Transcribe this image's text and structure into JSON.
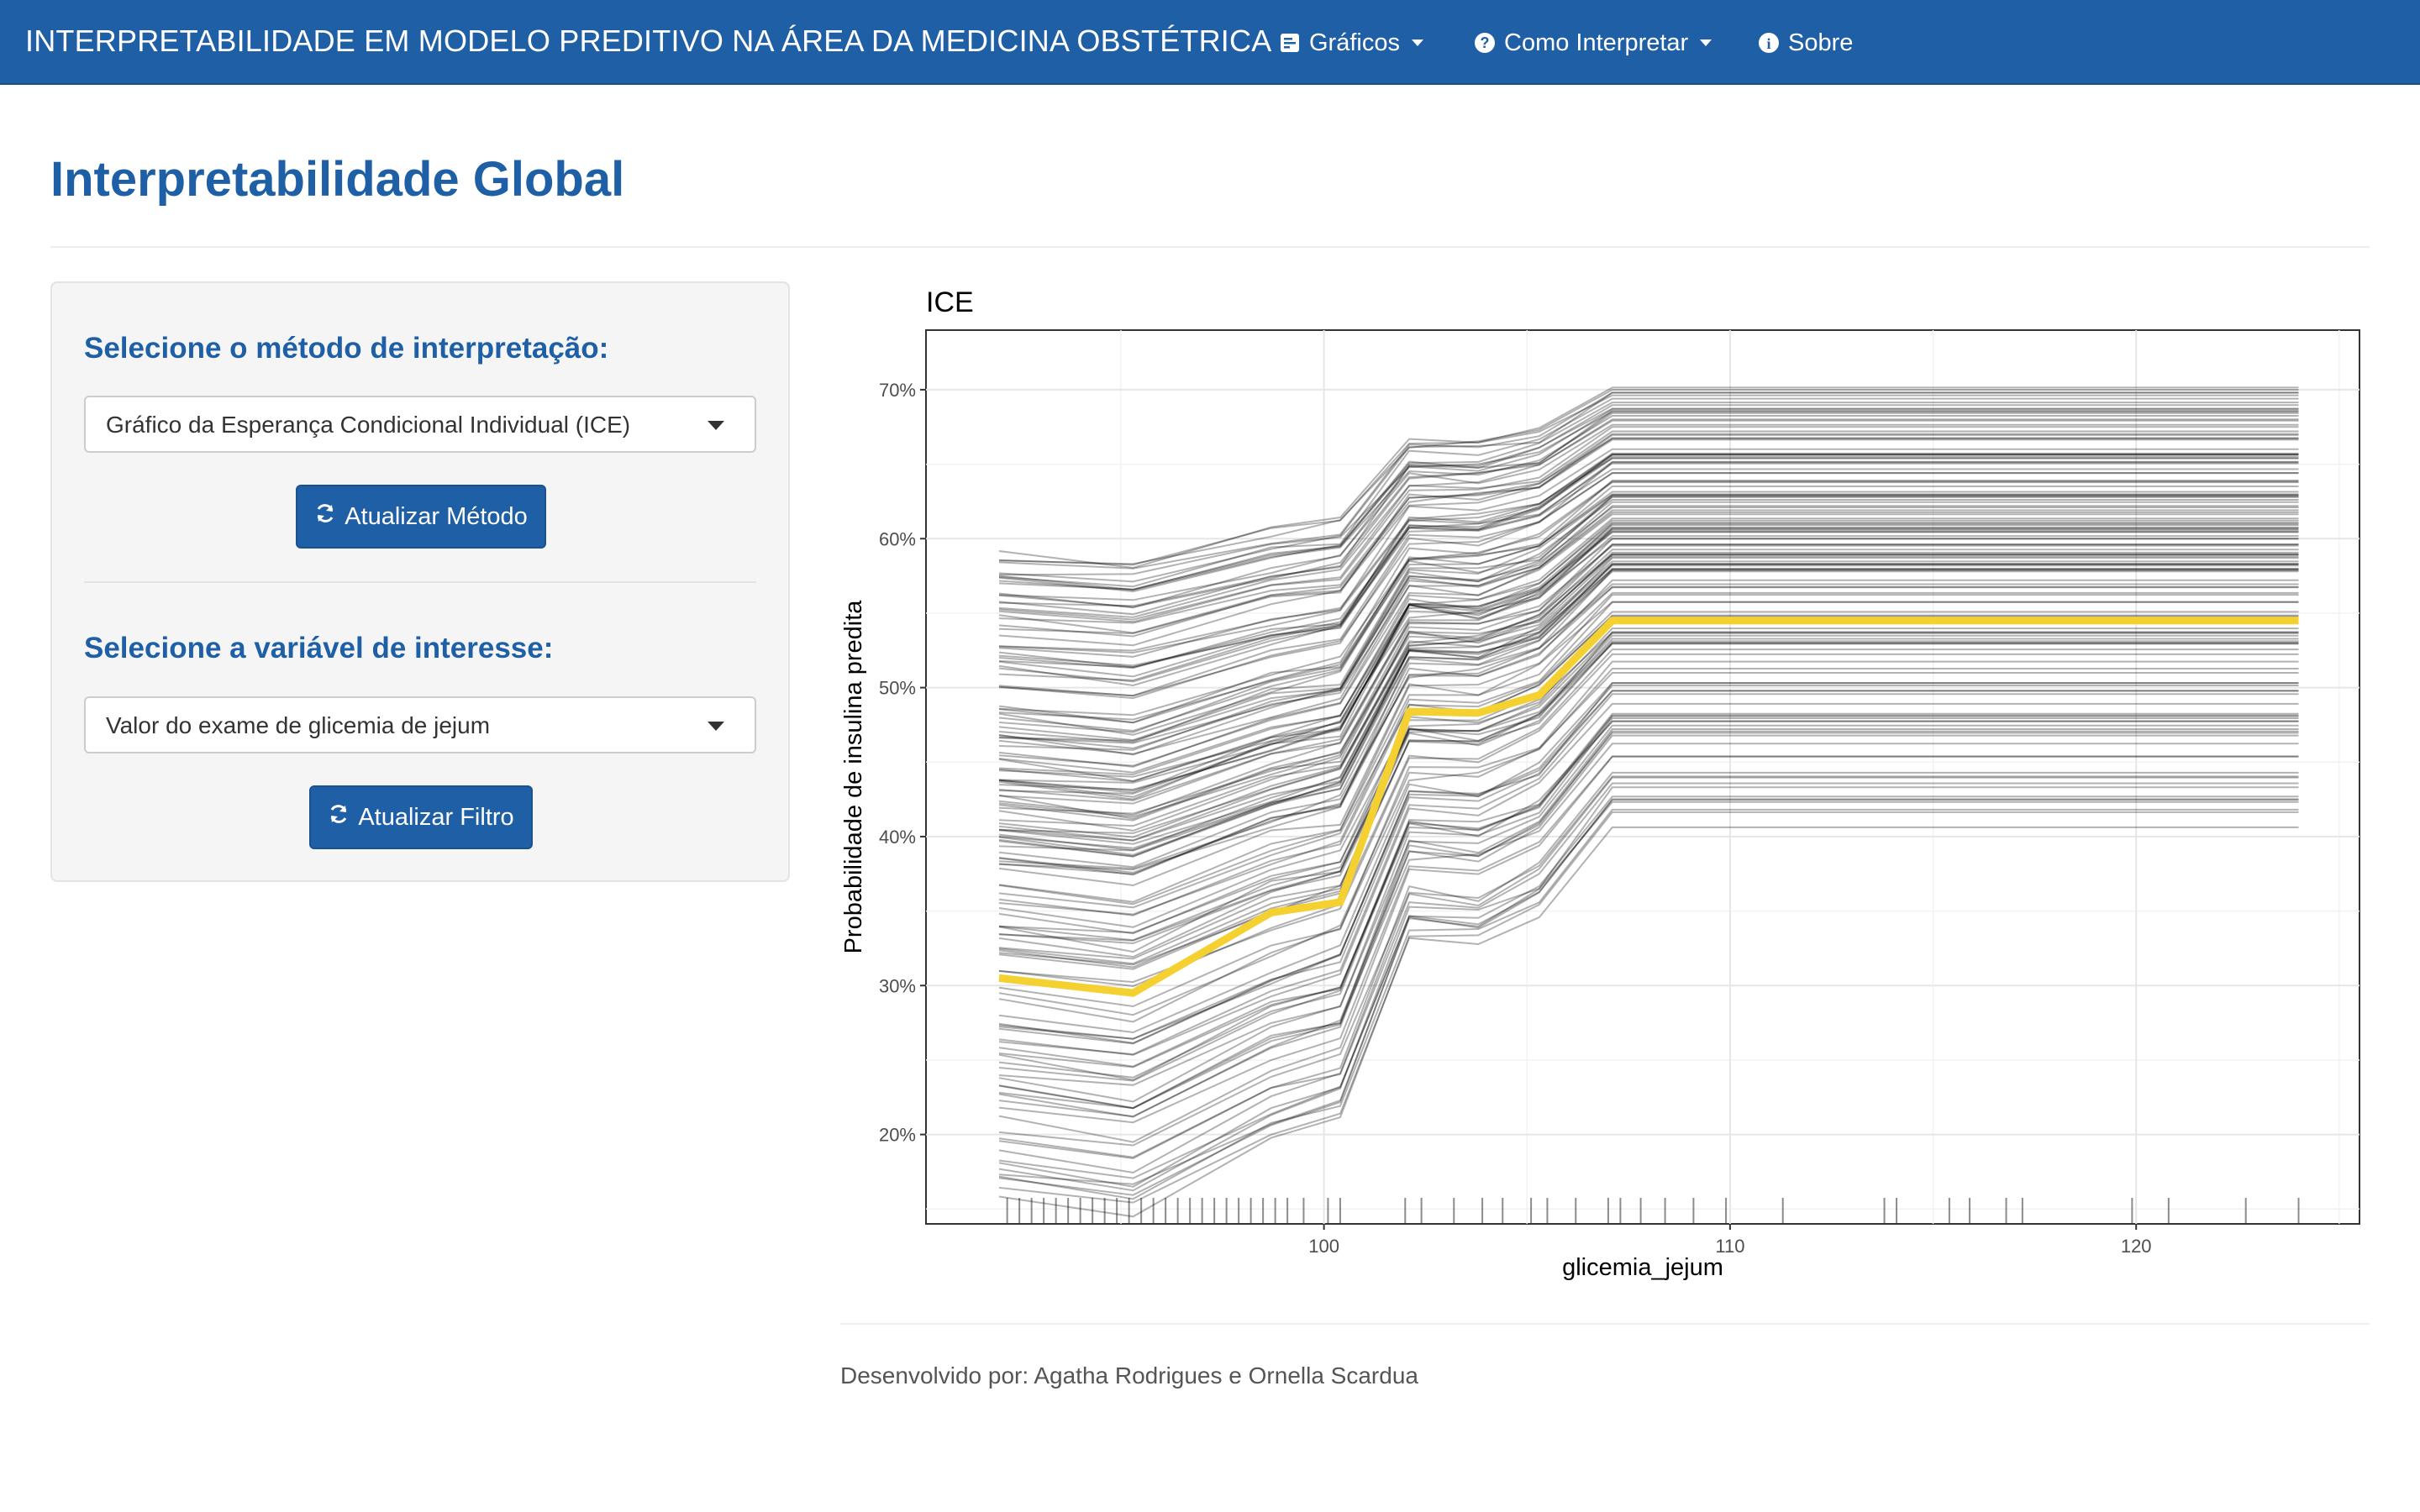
{
  "navbar": {
    "brand": "INTERPRETABILIDADE EM MODELO PREDITIVO NA ÁREA DA MEDICINA OBSTÉTRICA",
    "menus": [
      {
        "label": "Gráficos",
        "icon": "chart-icon",
        "dropdown": true
      },
      {
        "label": "Como Interpretar",
        "icon": "question-circle-icon",
        "dropdown": true
      },
      {
        "label": "Sobre",
        "icon": "info-circle-icon",
        "dropdown": false
      }
    ]
  },
  "page": {
    "title": "Interpretabilidade Global"
  },
  "sidebar": {
    "method": {
      "label": "Selecione o método de interpretação:",
      "selected": "Gráfico da Esperança Condicional Individual (ICE)",
      "button": "Atualizar Método",
      "button_icon": "refresh-icon"
    },
    "variable": {
      "label": "Selecione a variável de interesse:",
      "selected": "Valor do exame de glicemia de jejum",
      "button": "Atualizar Filtro",
      "button_icon": "refresh-icon"
    }
  },
  "colors": {
    "brand": "#1f5fa6",
    "highlight": "#f5d031",
    "ice_lines": "#000000"
  },
  "chart_data": {
    "type": "line",
    "title": "ICE",
    "xlabel": "glicemia_jejum",
    "ylabel": "Probabilidade de insulina predita",
    "xlim": [
      90.2,
      125.5
    ],
    "ylim": [
      14,
      74
    ],
    "x_ticks": [
      100,
      110,
      120
    ],
    "y_ticks": [
      "20%",
      "30%",
      "40%",
      "50%",
      "60%",
      "70%"
    ],
    "y_tick_values": [
      20,
      30,
      40,
      50,
      60,
      70
    ],
    "grid": true,
    "legend": "none",
    "x": [
      92,
      95.3,
      98.7,
      100.4,
      102.1,
      103.8,
      105.3,
      107.1,
      124
    ],
    "highlight_series": {
      "values": [
        30.5,
        29.5,
        34.9,
        35.6,
        48.4,
        48.3,
        49.5,
        54.5,
        54.5
      ],
      "color": "#f5d031"
    },
    "ice_series": {
      "count": 150,
      "start_range": [
        16,
        60
      ],
      "end_range": [
        41,
        70.5
      ],
      "color": "#000000",
      "opacity": 0.3
    },
    "rug": [
      92.2,
      92.5,
      92.8,
      93.1,
      93.4,
      93.7,
      94,
      94.3,
      94.6,
      94.9,
      95.2,
      95.5,
      95.8,
      96.1,
      96.4,
      96.7,
      97,
      97.3,
      97.6,
      97.9,
      98.2,
      98.5,
      98.8,
      99.1,
      99.5,
      100.1,
      100.4,
      102,
      102.4,
      103.2,
      103.9,
      104.4,
      105.1,
      105.5,
      106.2,
      107,
      107.3,
      107.8,
      108.4,
      109.1,
      109.9,
      111.3,
      113.8,
      114.1,
      115.4,
      115.9,
      116.8,
      117.2,
      119.9,
      120.8,
      122.7,
      124
    ]
  },
  "footer": {
    "text": "Desenvolvido por: Agatha Rodrigues e Ornella Scardua"
  }
}
